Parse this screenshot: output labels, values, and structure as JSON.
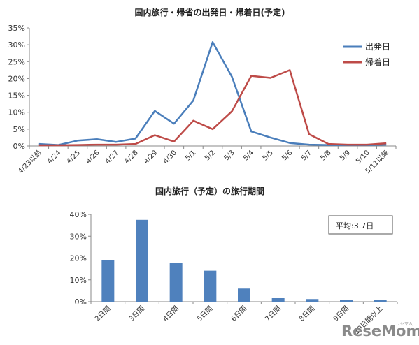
{
  "chart_data": [
    {
      "type": "line",
      "title": "国内旅行・帰省の出発日・帰着日(予定)",
      "categories": [
        "4/23以前",
        "4/24",
        "4/25",
        "4/26",
        "4/27",
        "4/28",
        "4/29",
        "4/30",
        "5/1",
        "5/2",
        "5/3",
        "5/4",
        "5/5",
        "5/6",
        "5/7",
        "5/8",
        "5/9",
        "5/10",
        "5/11以降"
      ],
      "series": [
        {
          "name": "出発日",
          "color": "#4A7EBB",
          "values": [
            0.6,
            0.3,
            1.6,
            2.0,
            1.2,
            2.2,
            10.4,
            6.6,
            13.5,
            30.8,
            20.5,
            4.3,
            2.5,
            0.9,
            0.4,
            0.3,
            0.3,
            0.3,
            0.4
          ]
        },
        {
          "name": "帰着日",
          "color": "#BE4B48",
          "values": [
            0.2,
            0.2,
            0.3,
            0.4,
            0.4,
            0.6,
            3.2,
            1.3,
            7.5,
            5.0,
            10.3,
            20.8,
            20.2,
            22.5,
            3.5,
            0.6,
            0.4,
            0.4,
            0.8
          ]
        }
      ],
      "ylim": [
        0,
        35
      ],
      "yticks": [
        "0%",
        "5%",
        "10%",
        "15%",
        "20%",
        "25%",
        "30%",
        "35%"
      ],
      "grid": false,
      "legend": "top-right"
    },
    {
      "type": "bar",
      "title": "国内旅行（予定）の旅行期間",
      "categories": [
        "2日間",
        "3日間",
        "4日間",
        "5日間",
        "6日間",
        "7日間",
        "8日間",
        "9日間",
        "10日間以上"
      ],
      "values": [
        19.0,
        37.5,
        17.8,
        14.2,
        6.0,
        1.6,
        1.2,
        0.8,
        0.8
      ],
      "color": "#4F81BD",
      "ylim": [
        0,
        40
      ],
      "yticks": [
        "0%",
        "10%",
        "20%",
        "30%",
        "40%"
      ],
      "grid": false,
      "annotation": "平均:3.7日"
    }
  ],
  "watermark": {
    "main": "ReseMom",
    "small": "リセマム"
  }
}
